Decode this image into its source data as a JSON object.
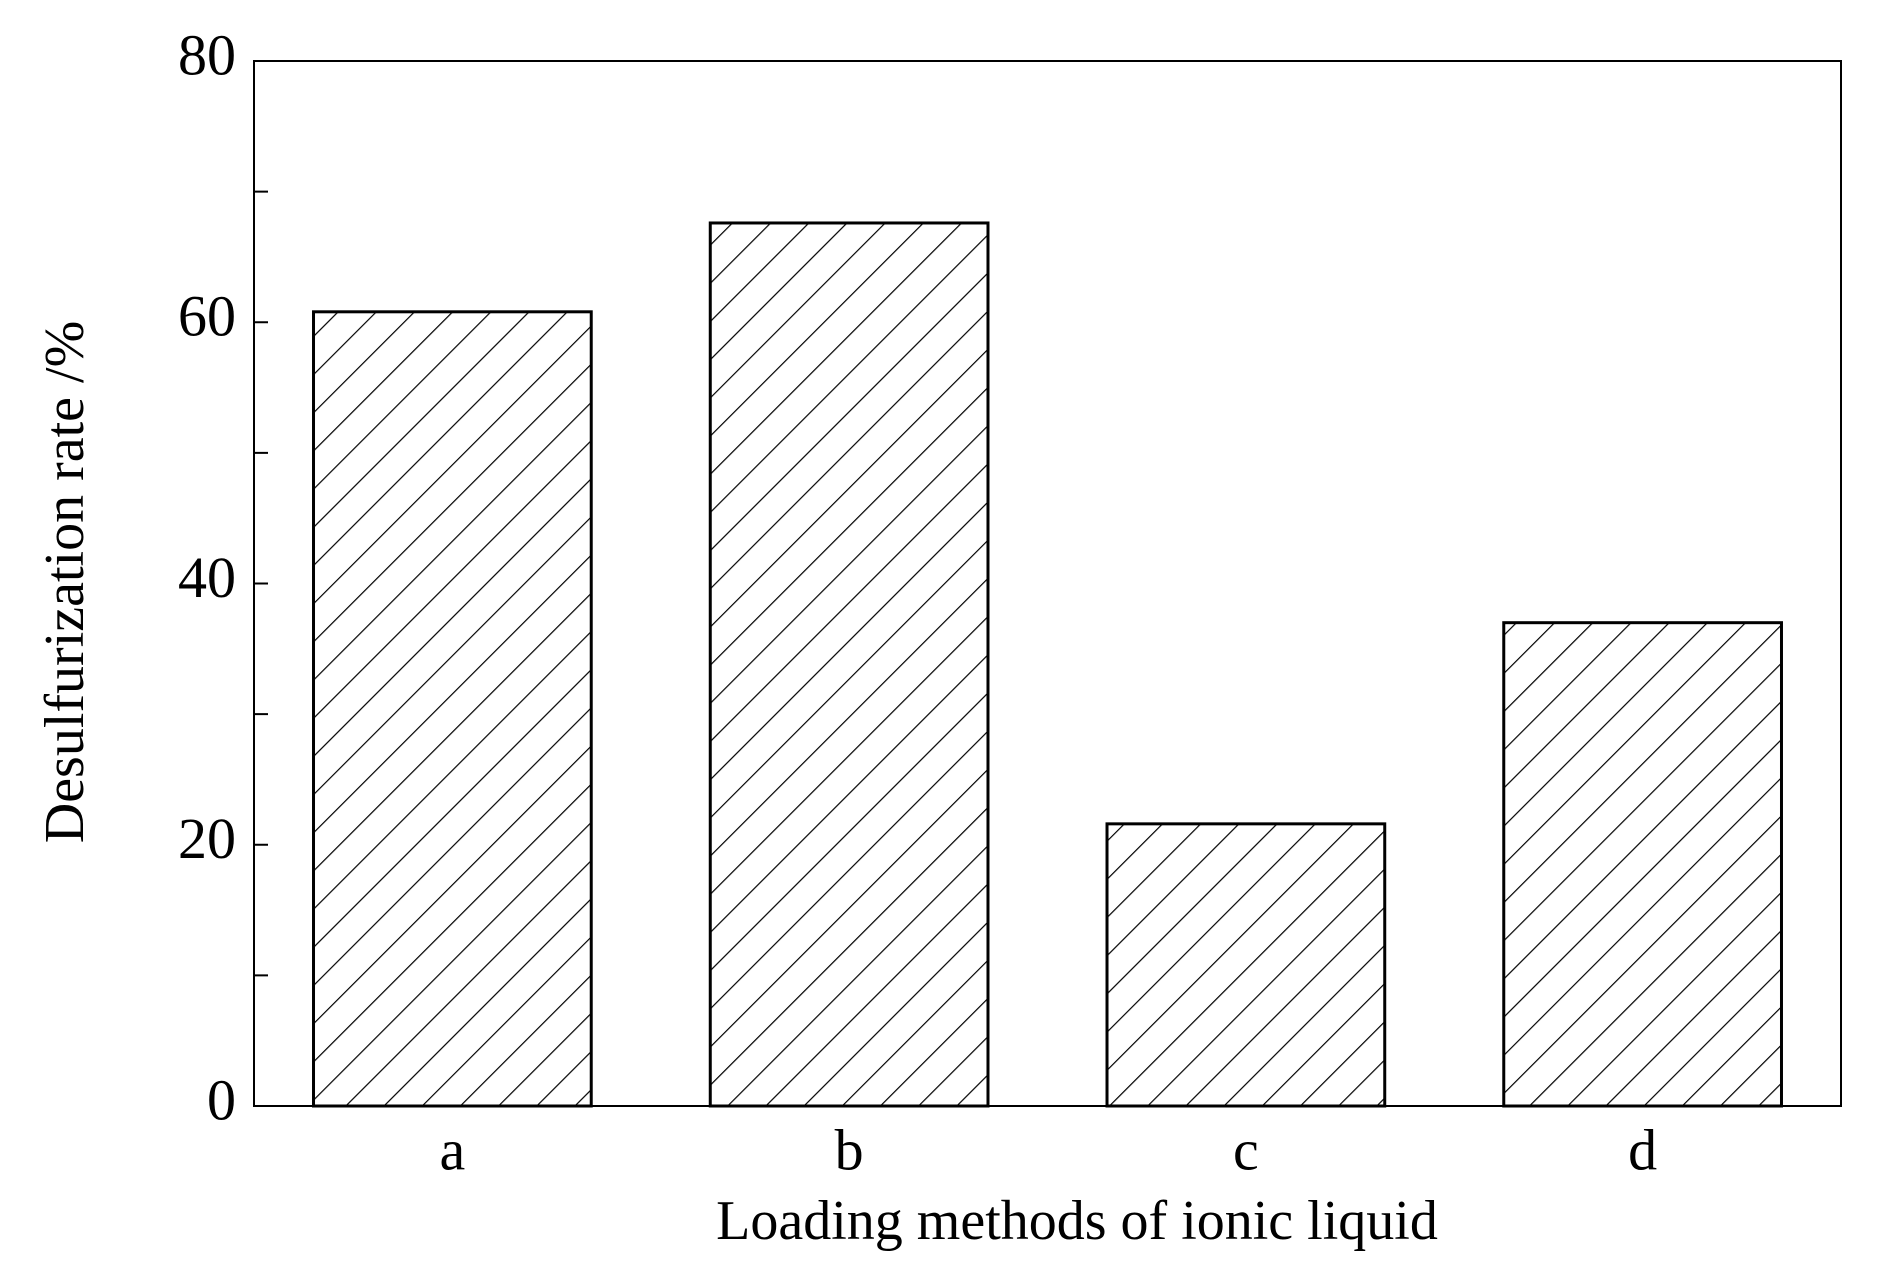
{
  "chart_data": {
    "type": "bar",
    "x_label": "Loading methods of ionic liquid",
    "y_label": "Desulfurization rate /%",
    "categories": [
      "a",
      "b",
      "c",
      "d"
    ],
    "values": [
      60.8,
      67.6,
      21.6,
      37.0
    ],
    "color": "#000000",
    "hatch": "diagonal",
    "ylim": [
      0,
      80
    ],
    "yticks": [
      0,
      20,
      40,
      60,
      80
    ],
    "yminorticks": [
      10,
      30,
      50,
      70
    ],
    "grid": false
  }
}
